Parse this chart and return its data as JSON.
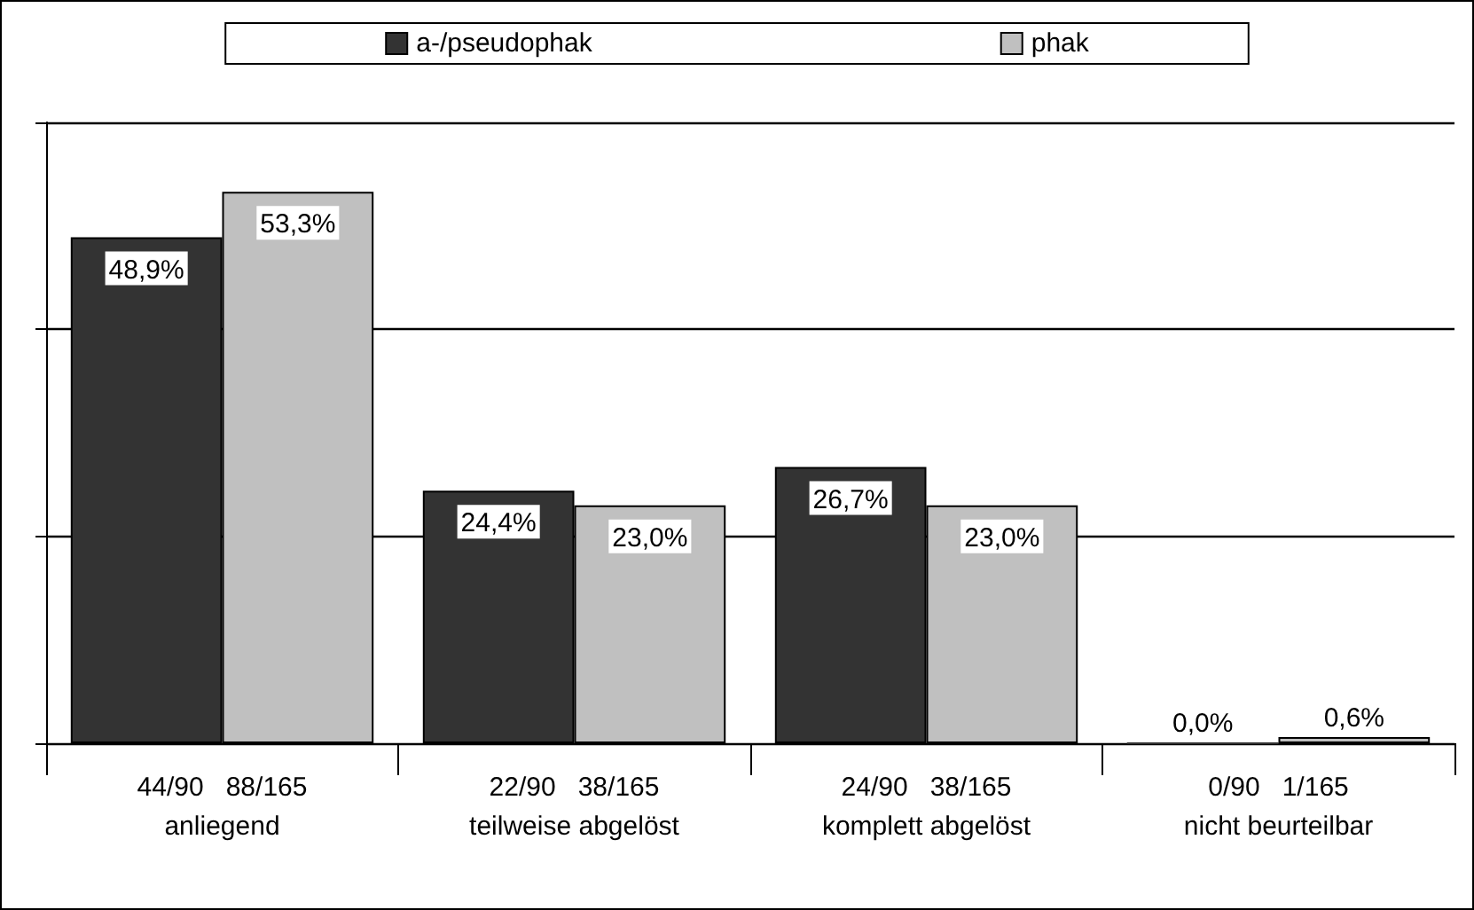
{
  "chart_data": {
    "type": "bar",
    "categories": [
      "44/90   88/165\nanliegend",
      "22/90   38/165\nteilweise abgelöst",
      "24/90   38/165\nkomplett abgelöst",
      "0/90   1/165\nnicht beurteilbar"
    ],
    "series": [
      {
        "name": "a-/pseudophak",
        "color": "#333333",
        "values": [
          48.9,
          24.4,
          26.7,
          0.0
        ],
        "value_labels": [
          "48,9%",
          "24,4%",
          "26,7%",
          "0,0%"
        ]
      },
      {
        "name": "phak",
        "color": "#c0c0c0",
        "values": [
          53.3,
          23.0,
          23.0,
          0.6
        ],
        "value_labels": [
          "53,3%",
          "23,0%",
          "23,0%",
          "0,6%"
        ]
      }
    ],
    "ylim": [
      0,
      60
    ],
    "yticks": [
      {
        "value": 0,
        "label": null
      },
      {
        "value": 20,
        "label": null
      },
      {
        "value": 40,
        "label": null
      },
      {
        "value": 60,
        "label": null
      }
    ],
    "grid": "y",
    "legend": "top"
  }
}
